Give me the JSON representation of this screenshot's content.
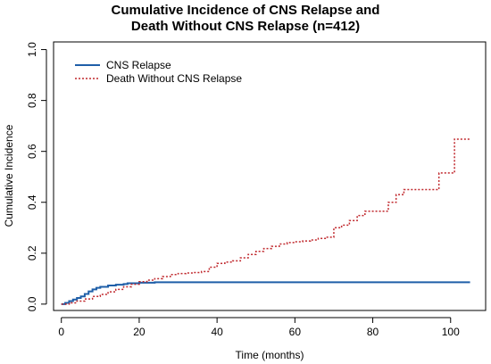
{
  "chart_data": {
    "type": "line",
    "title": [
      "Cumulative Incidence of CNS Relapse and",
      "Death Without CNS Relapse (n=412)"
    ],
    "xlabel": "Time (months)",
    "ylabel": "Cumulative Incidence",
    "xlim": [
      -2,
      109
    ],
    "ylim": [
      -0.025,
      1.03
    ],
    "x_ticks": [
      0,
      20,
      40,
      60,
      80,
      100
    ],
    "x_tick_labels": [
      "0",
      "20",
      "40",
      "60",
      "80",
      "100"
    ],
    "y_ticks": [
      0.0,
      0.2,
      0.4,
      0.6,
      0.8,
      1.0
    ],
    "y_tick_labels": [
      "0.0",
      "0.2",
      "0.4",
      "0.6",
      "0.8",
      "1.0"
    ],
    "legend_position": "top-left",
    "step": true,
    "series": [
      {
        "name": "CNS Relapse",
        "color": "#1f5fa8",
        "style": "solid",
        "x": [
          0,
          1,
          2,
          3,
          4,
          5,
          6,
          7,
          8,
          9,
          10,
          12,
          14,
          16,
          17,
          20,
          24,
          105
        ],
        "y": [
          0.0,
          0.005,
          0.012,
          0.018,
          0.024,
          0.03,
          0.04,
          0.05,
          0.058,
          0.064,
          0.068,
          0.073,
          0.076,
          0.079,
          0.082,
          0.084,
          0.086,
          0.086
        ]
      },
      {
        "name": "Death Without CNS Relapse",
        "color": "#c0282d",
        "style": "dotted",
        "x": [
          0,
          2,
          4,
          6,
          8,
          10,
          12,
          14,
          16,
          18,
          20,
          22,
          24,
          26,
          28,
          30,
          32,
          34,
          36,
          38,
          40,
          42,
          44,
          46,
          48,
          50,
          52,
          54,
          56,
          58,
          60,
          62,
          64,
          66,
          68,
          70,
          72,
          74,
          76,
          78,
          80,
          82,
          84,
          86,
          88,
          90,
          92,
          94,
          97,
          99,
          101,
          105
        ],
        "y": [
          0.0,
          0.005,
          0.012,
          0.02,
          0.03,
          0.038,
          0.048,
          0.058,
          0.068,
          0.078,
          0.088,
          0.094,
          0.1,
          0.108,
          0.116,
          0.12,
          0.122,
          0.124,
          0.128,
          0.145,
          0.16,
          0.165,
          0.17,
          0.182,
          0.195,
          0.207,
          0.218,
          0.227,
          0.236,
          0.242,
          0.245,
          0.248,
          0.252,
          0.258,
          0.263,
          0.3,
          0.31,
          0.328,
          0.348,
          0.365,
          0.365,
          0.365,
          0.4,
          0.43,
          0.45,
          0.45,
          0.45,
          0.45,
          0.515,
          0.515,
          0.648,
          0.648
        ]
      }
    ]
  }
}
